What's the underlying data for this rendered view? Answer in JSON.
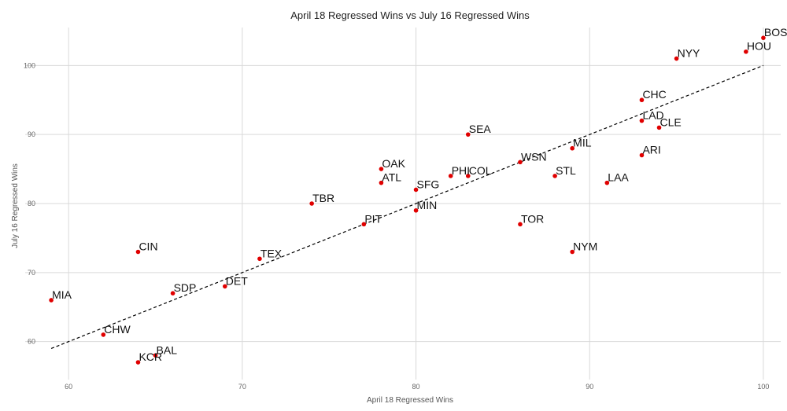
{
  "chart_data": {
    "type": "scatter",
    "title": "April 18 Regressed Wins vs July 16 Regressed Wins",
    "xlabel": "April 18 Regressed Wins",
    "ylabel": "July 16 Regressed Wins",
    "xlim": [
      57.5,
      101
    ],
    "ylim": [
      54.5,
      105.5
    ],
    "xticks": [
      60,
      70,
      80,
      90,
      100
    ],
    "yticks": [
      60,
      70,
      80,
      90,
      100
    ],
    "grid": true,
    "point_color": "#e00000",
    "trend_line": {
      "x": [
        59,
        100
      ],
      "y": [
        59,
        100
      ]
    },
    "points": [
      {
        "label": "BOS",
        "x": 100,
        "y": 104
      },
      {
        "label": "HOU",
        "x": 99,
        "y": 102
      },
      {
        "label": "NYY",
        "x": 95,
        "y": 101
      },
      {
        "label": "CHC",
        "x": 93,
        "y": 95
      },
      {
        "label": "LAD",
        "x": 93,
        "y": 92
      },
      {
        "label": "CLE",
        "x": 94,
        "y": 91
      },
      {
        "label": "SEA",
        "x": 83,
        "y": 90
      },
      {
        "label": "MIL",
        "x": 89,
        "y": 88
      },
      {
        "label": "ARI",
        "x": 93,
        "y": 87
      },
      {
        "label": "WSN",
        "x": 86,
        "y": 86
      },
      {
        "label": "OAK",
        "x": 78,
        "y": 85
      },
      {
        "label": "PHI",
        "x": 82,
        "y": 84
      },
      {
        "label": "COL",
        "x": 83,
        "y": 84
      },
      {
        "label": "STL",
        "x": 88,
        "y": 84
      },
      {
        "label": "ATL",
        "x": 78,
        "y": 83
      },
      {
        "label": "LAA",
        "x": 91,
        "y": 83
      },
      {
        "label": "SFG",
        "x": 80,
        "y": 82
      },
      {
        "label": "TBR",
        "x": 74,
        "y": 80
      },
      {
        "label": "MIN",
        "x": 80,
        "y": 79
      },
      {
        "label": "PIT",
        "x": 77,
        "y": 77
      },
      {
        "label": "TOR",
        "x": 86,
        "y": 77
      },
      {
        "label": "CIN",
        "x": 64,
        "y": 73
      },
      {
        "label": "NYM",
        "x": 89,
        "y": 73
      },
      {
        "label": "TEX",
        "x": 71,
        "y": 72
      },
      {
        "label": "DET",
        "x": 69,
        "y": 68
      },
      {
        "label": "SDP",
        "x": 66,
        "y": 67
      },
      {
        "label": "MIA",
        "x": 59,
        "y": 66
      },
      {
        "label": "CHW",
        "x": 62,
        "y": 61
      },
      {
        "label": "BAL",
        "x": 65,
        "y": 58
      },
      {
        "label": "KCR",
        "x": 64,
        "y": 57
      }
    ]
  }
}
